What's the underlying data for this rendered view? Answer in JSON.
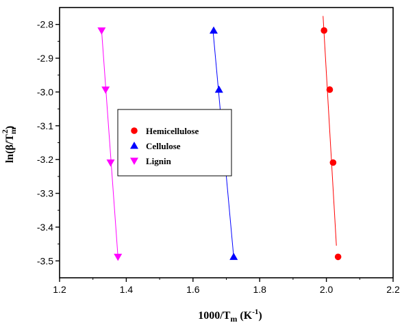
{
  "chart_data": {
    "type": "scatter",
    "xlabel": {
      "main": "1000/T",
      "sub": "m",
      "unit_open": " (K",
      "unit_sup": "-1",
      "unit_close": ")"
    },
    "ylabel": {
      "open": "ln(β/T",
      "sub": "m",
      "sup": "2",
      "close": ")"
    },
    "xlim": [
      1.2,
      2.2
    ],
    "ylim": [
      -3.55,
      -2.75
    ],
    "xticks": [
      "1.2",
      "1.4",
      "1.6",
      "1.8",
      "2.0",
      "2.2"
    ],
    "yticks": [
      "-2.8",
      "-2.9",
      "-3.0",
      "-3.1",
      "-3.2",
      "-3.3",
      "-3.4",
      "-3.5"
    ],
    "legend_position": "center-left",
    "series": [
      {
        "name": "Hemicellulose",
        "marker": "circle",
        "color": "#ff0000",
        "points": [
          [
            1.993,
            -2.818
          ],
          [
            2.01,
            -2.993
          ],
          [
            2.02,
            -3.209
          ],
          [
            2.035,
            -3.488
          ]
        ],
        "fit": [
          [
            1.99,
            -2.775
          ],
          [
            2.03,
            -3.455
          ]
        ]
      },
      {
        "name": "Cellulose",
        "marker": "triangle-up",
        "color": "#0000ff",
        "points": [
          [
            1.662,
            -2.818
          ],
          [
            1.678,
            -2.993
          ],
          [
            1.7,
            -3.209
          ],
          [
            1.722,
            -3.488
          ]
        ],
        "fit": [
          [
            1.66,
            -2.818
          ],
          [
            1.722,
            -3.488
          ]
        ]
      },
      {
        "name": "Lignin",
        "marker": "triangle-down",
        "color": "#ff00ff",
        "points": [
          [
            1.326,
            -2.818
          ],
          [
            1.338,
            -2.993
          ],
          [
            1.353,
            -3.209
          ],
          [
            1.375,
            -3.488
          ]
        ],
        "fit": [
          [
            1.326,
            -2.818
          ],
          [
            1.375,
            -3.488
          ]
        ]
      }
    ]
  }
}
